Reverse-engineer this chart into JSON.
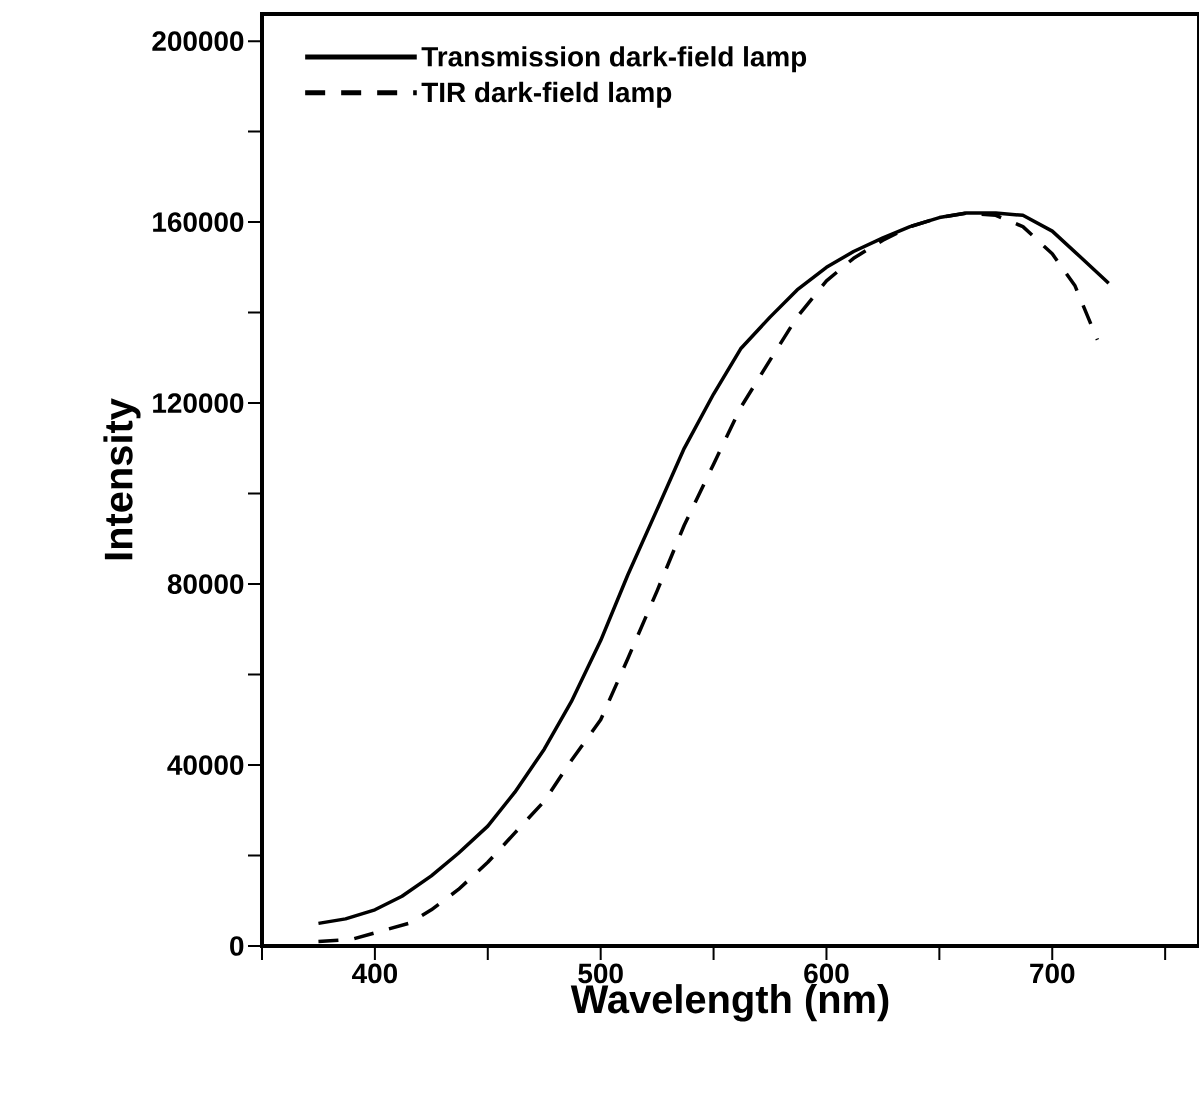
{
  "chart_data": {
    "type": "line",
    "xlabel": "Wavelength (nm)",
    "ylabel": "Intensity",
    "xlim": [
      350,
      765
    ],
    "ylim": [
      0,
      206000
    ],
    "xticks": [
      {
        "value": 350,
        "label": null
      },
      400,
      {
        "value": 450,
        "label": null
      },
      500,
      {
        "value": 550,
        "label": null
      },
      600,
      {
        "value": 650,
        "label": null
      },
      700,
      {
        "value": 750,
        "label": null
      }
    ],
    "yticks": [
      0,
      {
        "value": 20000,
        "label": null
      },
      40000,
      {
        "value": 60000,
        "label": null
      },
      80000,
      {
        "value": 100000,
        "label": null
      },
      120000,
      {
        "value": 140000,
        "label": null
      },
      160000,
      {
        "value": 180000,
        "label": null
      },
      200000
    ],
    "legend": "top left",
    "grid": false,
    "series": [
      {
        "name": "Transmission dark-field lamp",
        "color": "#000000",
        "line_style": "solid",
        "x": [
          375,
          387,
          400,
          412,
          425,
          437,
          450,
          462,
          475,
          487,
          500,
          512,
          525,
          537,
          550,
          562,
          575,
          587,
          600,
          612,
          625,
          637,
          650,
          662,
          675,
          687,
          700,
          712,
          725
        ],
        "values": [
          5000,
          6000,
          8000,
          11000,
          15500,
          20500,
          26500,
          34000,
          43500,
          54000,
          67500,
          82000,
          96500,
          110000,
          122000,
          132000,
          139000,
          145000,
          150000,
          153500,
          156500,
          159000,
          161000,
          162000,
          162000,
          161500,
          158000,
          152500,
          146500
        ]
      },
      {
        "name": "TIR dark-field lamp",
        "color": "#000000",
        "line_style": "dashed",
        "x": [
          375,
          390,
          415,
          425,
          437,
          450,
          462,
          475,
          487,
          500,
          512,
          525,
          537,
          550,
          562,
          575,
          587,
          600,
          612,
          625,
          637,
          650,
          662,
          675,
          687,
          700,
          710,
          720
        ],
        "values": [
          1000,
          1500,
          5000,
          8000,
          12500,
          18500,
          25000,
          32000,
          41000,
          50000,
          63500,
          78500,
          93000,
          106500,
          119000,
          129500,
          139000,
          147000,
          152000,
          156000,
          159000,
          161000,
          162000,
          161500,
          159000,
          153000,
          146000,
          134000
        ]
      }
    ]
  }
}
